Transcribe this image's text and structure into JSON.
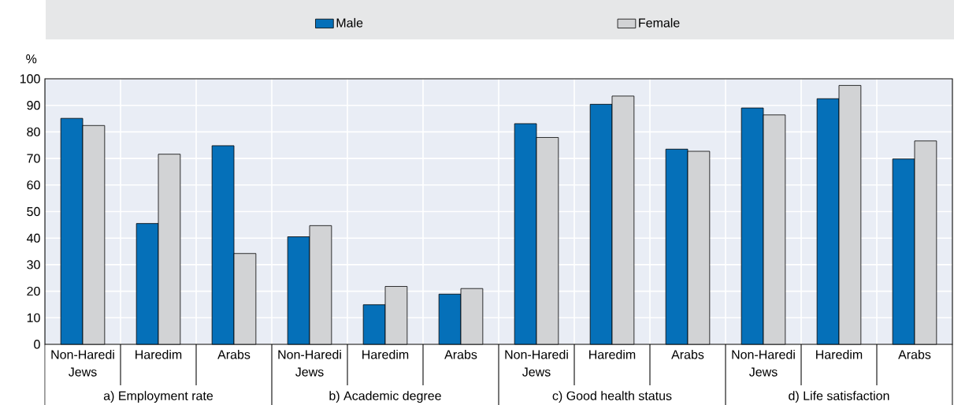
{
  "chart_data": {
    "type": "bar",
    "ylabel": "%",
    "categories": [
      "Non-Haredi Jews",
      "Haredim",
      "Arabs",
      "Non-Haredi Jews",
      "Haredim",
      "Arabs",
      "Non-Haredi Jews",
      "Haredim",
      "Arabs",
      "Non-Haredi Jews",
      "Haredim",
      "Arabs"
    ],
    "series": [
      {
        "name": "Male",
        "color": "#0570b9",
        "values": [
          85.1,
          45.5,
          74.8,
          40.5,
          14.9,
          18.9,
          83.1,
          90.4,
          73.5,
          89.0,
          92.5,
          69.8
        ]
      },
      {
        "name": "Female",
        "color": "#d2d3d5",
        "values": [
          82.4,
          71.6,
          34.2,
          44.7,
          21.8,
          21.0,
          77.9,
          93.5,
          72.7,
          86.4,
          97.5,
          76.6
        ]
      }
    ],
    "annotations": [
      "a) Employment rate",
      "b) Academic degree",
      "c) Good health status",
      "d) Life satisfaction"
    ],
    "ylim": [
      0,
      100
    ],
    "yticks": [
      0,
      10,
      20,
      30,
      40,
      50,
      60,
      70,
      80,
      90,
      100
    ],
    "grid": true,
    "legend": "top"
  }
}
